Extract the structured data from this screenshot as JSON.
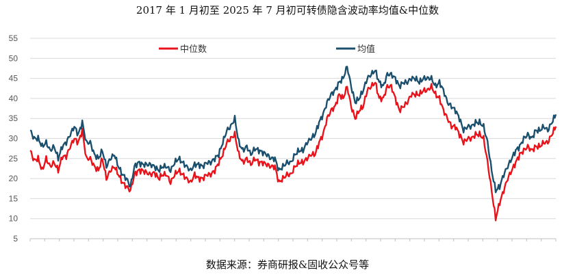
{
  "chart_data": {
    "type": "line",
    "title": "2017 年 1 月初至 2025 年 7 月初可转债隐含波动率均值&中位数",
    "source": "数据来源：券商研报&固收公众号等",
    "xlabel": "",
    "ylabel": "",
    "ylim": [
      5,
      55
    ],
    "yticks": [
      5,
      10,
      15,
      20,
      25,
      30,
      35,
      40,
      45,
      50,
      55
    ],
    "x_range": [
      "2017-01",
      "2025-07"
    ],
    "grid": true,
    "legend": "top-center",
    "series": [
      {
        "name": "中位数",
        "color": "#e8131b",
        "values": [
          27,
          24.5,
          25,
          22,
          25,
          23,
          24,
          22,
          25.5,
          25.5,
          28,
          30,
          29,
          32,
          25,
          25,
          23,
          22,
          25,
          20,
          22,
          23,
          21,
          19,
          18,
          17,
          21,
          22,
          22,
          21.5,
          21,
          21.5,
          20,
          21,
          21,
          19,
          21,
          22,
          21,
          20,
          19,
          21,
          20,
          20,
          21,
          21,
          22,
          24,
          26,
          29,
          30,
          31,
          26,
          24,
          25,
          23.5,
          25,
          24,
          24,
          23.5,
          23,
          23,
          19,
          20,
          21,
          21,
          23,
          24,
          24,
          25,
          26,
          26,
          29,
          31,
          35,
          37,
          38,
          41,
          40,
          43,
          38,
          35,
          37,
          38,
          42,
          43,
          44,
          40,
          40,
          43,
          43,
          40,
          37,
          38,
          39,
          41,
          41,
          41,
          42,
          42,
          43,
          41,
          40,
          37,
          35,
          33,
          33,
          31,
          29,
          30,
          30,
          31,
          31,
          30,
          24,
          17,
          10,
          14,
          17,
          20,
          22,
          24,
          26,
          27,
          28,
          27,
          28,
          28,
          29,
          29,
          31,
          33
        ]
      },
      {
        "name": "均值",
        "color": "#1b4f6e",
        "values": [
          32,
          30,
          30,
          28,
          29,
          27,
          28,
          25,
          28,
          29,
          31,
          33,
          31,
          34,
          29,
          29,
          26,
          25,
          27,
          23,
          25,
          26,
          23,
          21,
          20,
          18,
          23,
          24,
          23.5,
          23.5,
          23.5,
          23,
          22,
          23,
          23,
          22,
          24,
          25,
          24,
          23,
          22,
          23.5,
          23.5,
          23,
          24,
          24,
          25,
          26,
          29,
          32,
          33,
          35,
          29,
          27,
          28,
          26,
          27.5,
          27,
          26.5,
          26,
          25,
          25,
          22,
          23,
          24,
          24,
          26,
          27,
          27,
          29,
          30,
          31,
          34,
          36,
          39,
          41,
          42,
          44,
          45,
          48,
          43,
          39,
          40,
          42,
          45,
          46,
          47,
          44,
          43,
          46,
          46,
          45,
          43,
          44,
          44,
          45,
          45,
          44,
          45,
          45,
          45,
          43,
          44,
          42,
          39,
          38,
          37,
          35,
          32,
          33,
          33,
          34,
          34,
          33,
          29,
          22,
          17,
          18,
          21,
          23,
          25,
          27,
          28,
          30,
          31,
          30,
          32,
          32,
          33,
          32,
          34,
          36
        ]
      }
    ]
  }
}
